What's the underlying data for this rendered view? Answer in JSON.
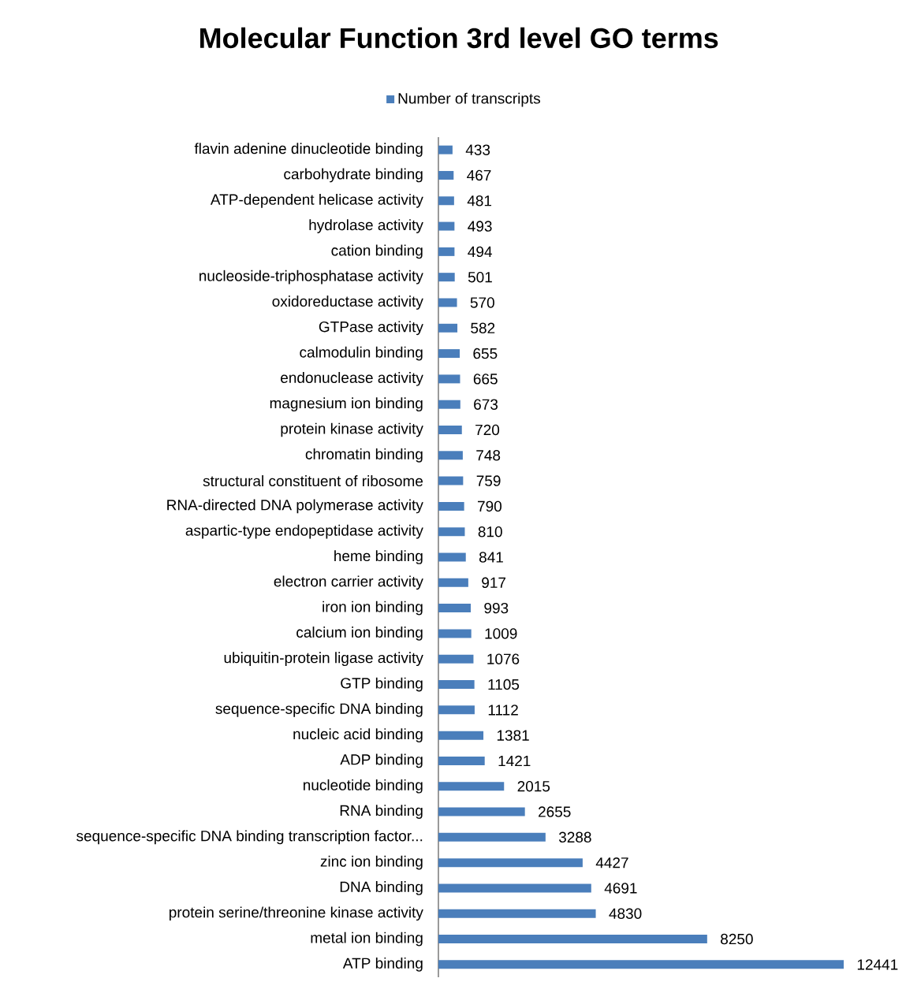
{
  "chart_data": {
    "type": "bar",
    "orientation": "horizontal",
    "title": "Molecular Function 3rd level GO terms",
    "categories": [
      "flavin adenine dinucleotide binding",
      "carbohydrate binding",
      "ATP-dependent helicase activity",
      "hydrolase activity",
      "cation binding",
      "nucleoside-triphosphatase activity",
      "oxidoreductase activity",
      "GTPase activity",
      "calmodulin binding",
      "endonuclease activity",
      "magnesium ion binding",
      "protein kinase activity",
      "chromatin binding",
      "structural constituent of ribosome",
      "RNA-directed DNA polymerase activity",
      "aspartic-type endopeptidase activity",
      "heme binding",
      "electron carrier activity",
      "iron ion binding",
      "calcium ion binding",
      "ubiquitin-protein ligase activity",
      "GTP binding",
      "sequence-specific DNA binding",
      "nucleic acid binding",
      "ADP binding",
      "nucleotide binding",
      "RNA binding",
      "sequence-specific DNA binding transcription factor...",
      "zinc ion binding",
      "DNA binding",
      "protein serine/threonine kinase activity",
      "metal ion binding",
      "ATP binding"
    ],
    "series": [
      {
        "name": "Number of transcripts",
        "color": "#4a7ebb",
        "values": [
          433,
          467,
          481,
          493,
          494,
          501,
          570,
          582,
          655,
          665,
          673,
          720,
          748,
          759,
          790,
          810,
          841,
          917,
          993,
          1009,
          1076,
          1105,
          1112,
          1381,
          1421,
          2015,
          2655,
          3288,
          4427,
          4691,
          4830,
          8250,
          12441
        ]
      }
    ],
    "data_labels": true,
    "legend": "top"
  }
}
